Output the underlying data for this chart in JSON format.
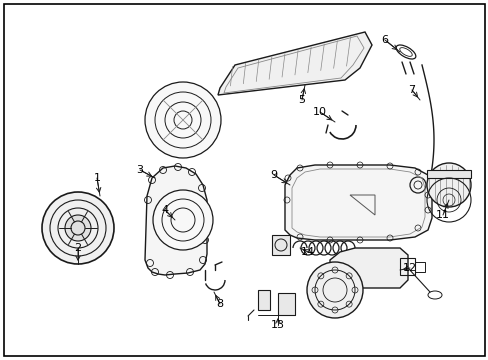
{
  "background_color": "#ffffff",
  "border_color": "#000000",
  "fig_width": 4.89,
  "fig_height": 3.6,
  "dpi": 100,
  "cc": "#1a1a1a",
  "lc": "#1a1a1a",
  "border_width": 1.2
}
